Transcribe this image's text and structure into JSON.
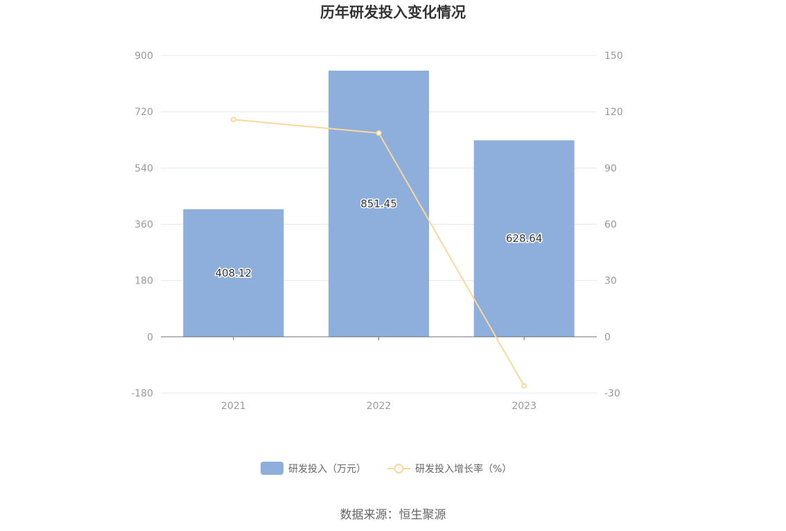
{
  "chart_data": {
    "type": "bar",
    "title": "历年研发投入变化情况",
    "categories": [
      "2021",
      "2022",
      "2023"
    ],
    "series": [
      {
        "name": "研发投入（万元）",
        "type": "bar",
        "axis": "left",
        "values": [
          408.12,
          851.45,
          628.64
        ],
        "data_labels": [
          "408.12",
          "851.45",
          "628.64"
        ]
      },
      {
        "name": "研发投入增长率（%）",
        "type": "line",
        "axis": "right",
        "values": [
          115.8,
          108.6,
          -26.2
        ]
      }
    ],
    "y_left": {
      "ticks": [
        -180,
        0,
        180,
        360,
        540,
        720,
        900
      ],
      "ylim": [
        -180,
        900
      ]
    },
    "y_right": {
      "ticks": [
        -30,
        0,
        30,
        60,
        90,
        120,
        150
      ],
      "ylim": [
        -30,
        150
      ]
    },
    "grid": true,
    "legend_position": "bottom-center",
    "source": "数据来源：恒生聚源",
    "colors": {
      "bar": "#8eaedb",
      "line": "#fbd899",
      "grid": "#e3e7f2",
      "axis": "#6e7079"
    }
  }
}
